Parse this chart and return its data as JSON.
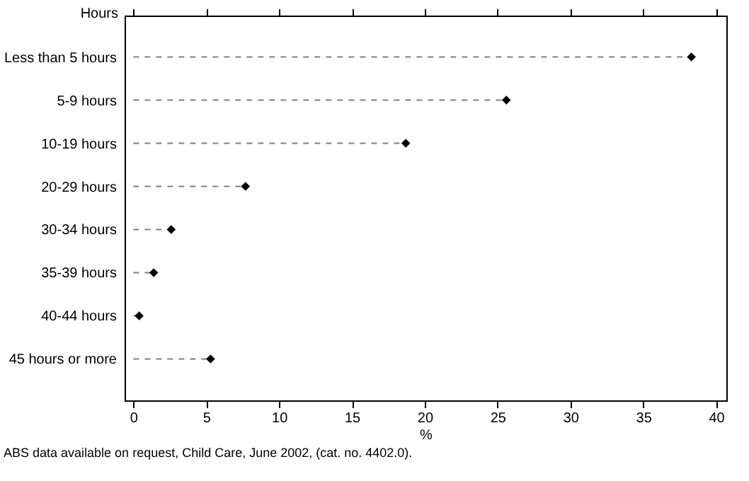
{
  "chart_data": {
    "type": "lollipop",
    "orientation": "horizontal",
    "ylabel": "Hours",
    "xlabel": "%",
    "categories": [
      "Less than 5 hours",
      "5-9 hours",
      "10-19 hours",
      "20-29 hours",
      "30-34 hours",
      "35-39 hours",
      "40-44 hours",
      "45 hours or more"
    ],
    "values": [
      38.3,
      25.6,
      18.7,
      7.7,
      2.6,
      1.4,
      0.4,
      5.3
    ],
    "color": "#000000",
    "marker": "diamond",
    "line_style": "dashed",
    "xlim": [
      -0.6,
      40.7
    ],
    "xticks": [
      0,
      5,
      10,
      15,
      20,
      25,
      30,
      35,
      40
    ],
    "annotations": [
      "ABS data available on request, Child Care, June 2002, (cat. no. 4402.0)."
    ]
  }
}
